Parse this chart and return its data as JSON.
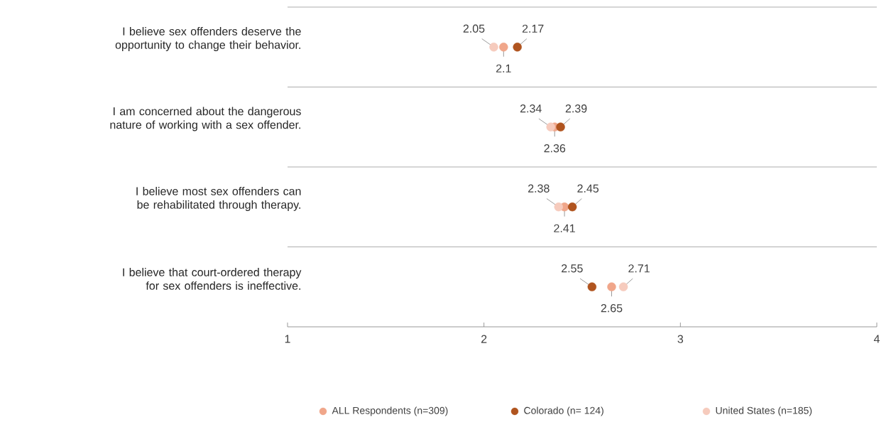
{
  "chart_data": {
    "type": "scatter",
    "orientation": "horizontal",
    "categories": [
      "I believe sex offenders deserve the opportunity to change their behavior.",
      "I am concerned about the dangerous nature of working with a sex offender.",
      "I believe most sex offenders can be rehabilitated through therapy.",
      "I believe that court-ordered therapy for sex offenders is ineffective."
    ],
    "series": [
      {
        "name": "ALL Respondents (n=309)",
        "color": "#f0a68a",
        "values": [
          2.1,
          2.36,
          2.41,
          2.65
        ]
      },
      {
        "name": "Colorado (n= 124)",
        "color": "#b0541f",
        "values": [
          2.17,
          2.39,
          2.45,
          2.55
        ]
      },
      {
        "name": "United States (n=185)",
        "color": "#f6cbbd",
        "values": [
          2.05,
          2.34,
          2.38,
          2.71
        ]
      }
    ],
    "xlim": [
      1,
      4
    ],
    "xticks": [
      1,
      2,
      3,
      4
    ],
    "grid": "y",
    "legend": "bottom",
    "marker": "circle",
    "data_labels": true
  }
}
